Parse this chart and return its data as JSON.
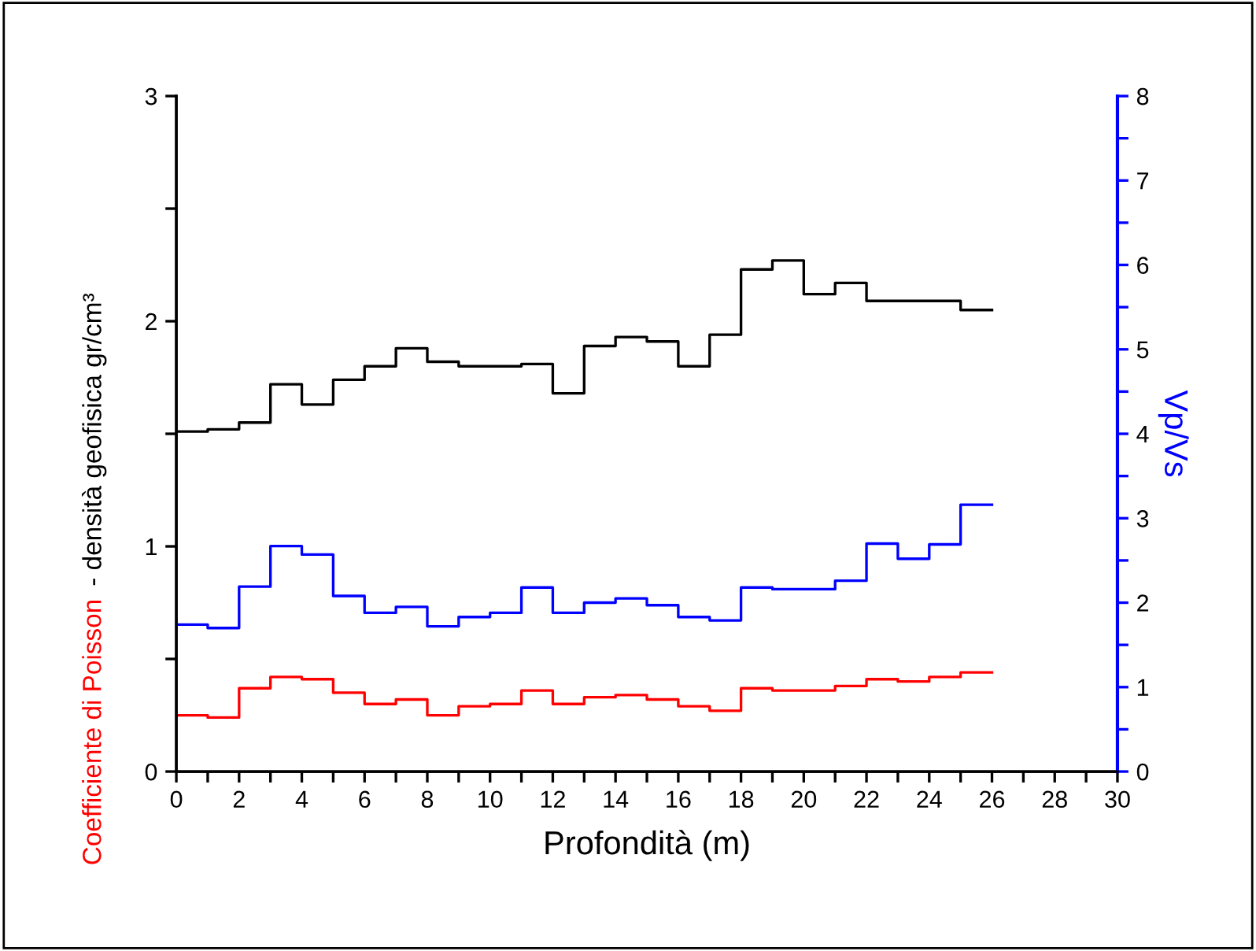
{
  "chart_data": {
    "type": "step",
    "xlabel": "Profondità (m)",
    "ylabel": [
      "Coefficiente di Poisson",
      " - densità geofisica gr/cm³"
    ],
    "y2label": "Vp/Vs",
    "x": [
      0,
      1,
      2,
      3,
      4,
      5,
      6,
      7,
      8,
      9,
      10,
      11,
      12,
      13,
      14,
      15,
      16,
      17,
      18,
      19,
      20,
      21,
      22,
      23,
      24,
      25,
      26
    ],
    "series": [
      {
        "color": "#000000",
        "values": [
          1.51,
          1.52,
          1.55,
          1.72,
          1.63,
          1.74,
          1.8,
          1.88,
          1.82,
          1.8,
          1.8,
          1.81,
          1.68,
          1.89,
          1.93,
          1.91,
          1.8,
          1.94,
          2.23,
          2.27,
          2.12,
          2.17,
          2.09,
          2.09,
          2.09,
          2.05,
          2.05
        ]
      },
      {
        "color": "#ff0000",
        "values": [
          0.25,
          0.24,
          0.37,
          0.42,
          0.41,
          0.35,
          0.3,
          0.32,
          0.25,
          0.29,
          0.3,
          0.36,
          0.3,
          0.33,
          0.34,
          0.32,
          0.29,
          0.27,
          0.37,
          0.36,
          0.36,
          0.38,
          0.41,
          0.4,
          0.42,
          0.44,
          0.44
        ]
      },
      {
        "color": "#0000ff",
        "axis": "y2",
        "values": [
          1.74,
          1.7,
          2.19,
          2.67,
          2.57,
          2.08,
          1.88,
          1.95,
          1.72,
          1.83,
          1.88,
          2.18,
          1.88,
          2.0,
          2.05,
          1.97,
          1.83,
          1.79,
          2.18,
          2.16,
          2.16,
          2.26,
          2.7,
          2.52,
          2.69,
          3.16,
          3.16
        ]
      }
    ],
    "xlim": [
      0,
      30
    ],
    "xticks": [
      0,
      {
        "value": 1,
        "label": null
      },
      2,
      {
        "value": 3,
        "label": null
      },
      4,
      {
        "value": 5,
        "label": null
      },
      6,
      {
        "value": 7,
        "label": null
      },
      8,
      {
        "value": 9,
        "label": null
      },
      10,
      {
        "value": 11,
        "label": null
      },
      12,
      {
        "value": 13,
        "label": null
      },
      14,
      {
        "value": 15,
        "label": null
      },
      16,
      {
        "value": 17,
        "label": null
      },
      18,
      {
        "value": 19,
        "label": null
      },
      20,
      {
        "value": 21,
        "label": null
      },
      22,
      {
        "value": 23,
        "label": null
      },
      24,
      {
        "value": 25,
        "label": null
      },
      26,
      {
        "value": 27,
        "label": null
      },
      28,
      {
        "value": 29,
        "label": null
      },
      30
    ],
    "ylim": [
      0,
      3
    ],
    "yticks": [
      0,
      {
        "value": 0.5,
        "label": null
      },
      1,
      {
        "value": 1.5,
        "label": null
      },
      2,
      {
        "value": 2.5,
        "label": null
      },
      3
    ],
    "y2lim": [
      0,
      8
    ],
    "y2ticks": [
      0,
      {
        "value": 0.5,
        "label": null
      },
      1,
      {
        "value": 1.5,
        "label": null
      },
      2,
      {
        "value": 2.5,
        "label": null
      },
      3,
      {
        "value": 3.5,
        "label": null
      },
      4,
      {
        "value": 4.5,
        "label": null
      },
      5,
      {
        "value": 5.5,
        "label": null
      },
      6,
      {
        "value": 6.5,
        "label": null
      },
      7,
      {
        "value": 7.5,
        "label": null
      },
      8
    ],
    "grid": false,
    "legend": false
  }
}
